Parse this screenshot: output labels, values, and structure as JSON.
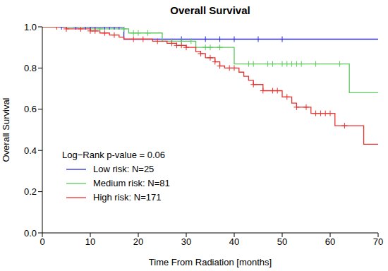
{
  "chart_data": {
    "type": "step",
    "title": "Overall Survival",
    "x_label": "Time From Radiation [months]",
    "y_label": "Overall Survival",
    "annotation": "Log−Rank p-value = 0.06",
    "legend": "bottom left",
    "xlim": [
      0,
      70
    ],
    "xticks": [
      0,
      10,
      20,
      30,
      40,
      50,
      60,
      70
    ],
    "ylim": [
      0,
      1
    ],
    "yticks": [
      {
        "value": 0,
        "label": "0.0"
      },
      0.2,
      0.4,
      0.6,
      0.8,
      {
        "value": 1,
        "label": "1.0"
      }
    ],
    "grid": false,
    "series": [
      {
        "name": "Low risk: N=25",
        "color": "#2b2bd6",
        "marker": "plus",
        "x": [
          0,
          17,
          70
        ],
        "values": [
          1,
          0.94,
          0.94
        ],
        "censored": [
          4,
          7,
          9,
          10,
          11,
          12,
          13,
          14,
          15,
          16,
          29,
          34,
          37,
          40,
          45,
          50
        ]
      },
      {
        "name": "Medium risk: N=81",
        "color": "#5cc85c",
        "marker": "plus",
        "x": [
          0,
          10,
          18,
          25,
          32,
          40,
          64,
          70
        ],
        "values": [
          1,
          0.99,
          0.97,
          0.93,
          0.9,
          0.82,
          0.68,
          0.68
        ],
        "censored": [
          12,
          17,
          19,
          20,
          22,
          27,
          29,
          31,
          34,
          35,
          37,
          43,
          44,
          47,
          48,
          50,
          51,
          52,
          53,
          54,
          57,
          62
        ]
      },
      {
        "name": "High risk: N=171",
        "color": "#e8312f",
        "marker": "plus",
        "x": [
          0,
          5,
          10,
          12,
          14,
          16,
          17,
          23,
          26,
          28,
          30,
          32,
          33,
          34,
          36,
          37,
          38,
          41,
          42,
          43,
          44,
          46,
          50,
          52,
          53,
          56,
          61,
          67,
          70
        ],
        "values": [
          1,
          0.99,
          0.98,
          0.97,
          0.96,
          0.95,
          0.94,
          0.93,
          0.92,
          0.91,
          0.9,
          0.88,
          0.87,
          0.85,
          0.83,
          0.81,
          0.8,
          0.78,
          0.76,
          0.74,
          0.72,
          0.69,
          0.66,
          0.63,
          0.61,
          0.58,
          0.52,
          0.43,
          0.43
        ],
        "censored": [
          3,
          5,
          8,
          10,
          11,
          13,
          15,
          19,
          21,
          24,
          27,
          28,
          29,
          30,
          33,
          35,
          36,
          37,
          39,
          40,
          44,
          46,
          48,
          49,
          51,
          53,
          55,
          57,
          58,
          59,
          60,
          63
        ]
      }
    ]
  }
}
